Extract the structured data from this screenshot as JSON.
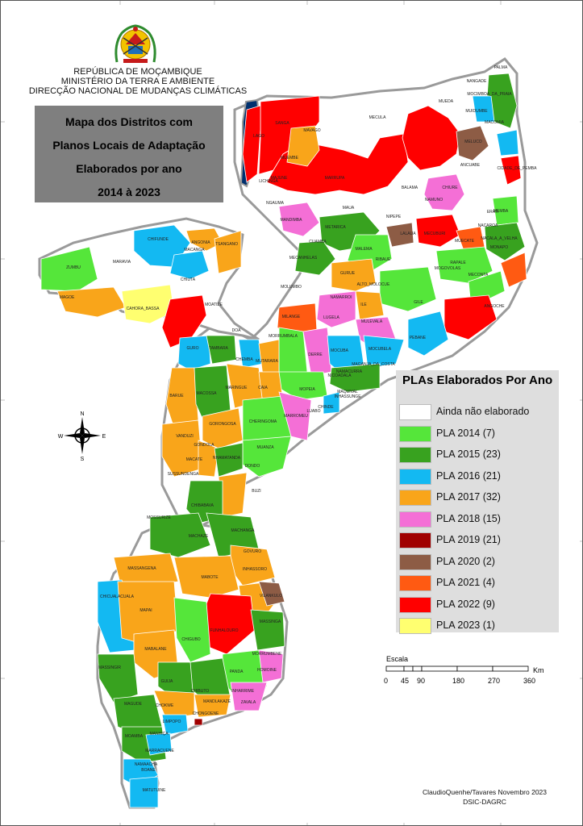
{
  "header": {
    "line1": "REPÚBLICA DE MOÇAMBIQUE",
    "line2": "MINISTÉRIO DA TERRA E AMBIENTE",
    "line3": "DIRECÇÃO NACIONAL DE MUDANÇAS CLIMÁTICAS"
  },
  "title": {
    "line1": "Mapa dos Distritos com",
    "line2": "Planos Locais de Adaptação",
    "line3": "Elaborados por ano",
    "line4": "2014 à 2023"
  },
  "legend": {
    "title": "PLAs Elaborados Por Ano",
    "items": [
      {
        "label": "Ainda não elaborado",
        "color": "#ffffff"
      },
      {
        "label": "PLA 2014 (7)",
        "color": "#55e63a"
      },
      {
        "label": "PLA 2015 (23)",
        "color": "#38a21f"
      },
      {
        "label": "PLA 2016 (21)",
        "color": "#13b9f2"
      },
      {
        "label": "PLA 2017 (32)",
        "color": "#f9a51a"
      },
      {
        "label": "PLA 2018 (15)",
        "color": "#f46fd6"
      },
      {
        "label": "PLA 2019 (21)",
        "color": "#a00000"
      },
      {
        "label": "PLA 2020 (2)",
        "color": "#8d5c45"
      },
      {
        "label": "PLA 2021 (4)",
        "color": "#ff5a12"
      },
      {
        "label": "PLA 2022 (9)",
        "color": "#ff0000"
      },
      {
        "label": "PLA 2023 (1)",
        "color": "#ffff70"
      }
    ]
  },
  "compass": {
    "n": "N",
    "s": "S",
    "e": "E",
    "w": "W"
  },
  "scale": {
    "title": "Escala",
    "ticks": [
      "0",
      "45",
      "90",
      "180",
      "270",
      "360"
    ],
    "unit": "Km"
  },
  "credit": {
    "line1": "ClaudioQuenhe/Tavares Novembro 2023",
    "line2": "DSIC-DAGRC"
  },
  "districts": [
    "PALMA",
    "NANGADE",
    "MOCIMBOA_DA_PRAIA",
    "MUIDUMBE",
    "MACOMIA",
    "MUEDA",
    "MELUCO",
    "MECULA",
    "ANCUABE",
    "CIDADE_DE_PEMBA",
    "BALAMA",
    "CHIURE",
    "NAMUNO",
    "MAVAGO",
    "SANGA",
    "LAGO",
    "MUEMBE",
    "LICHINGA",
    "MAJUNE",
    "MARRUPA",
    "NGAUMA",
    "MANDIMBA",
    "MAUA",
    "NIPEPE",
    "METARICA",
    "CUAMBA",
    "MECANHELAS",
    "ERATI",
    "MEMBA",
    "LALAUA",
    "MECUBURI",
    "MUECATE",
    "NACAROA",
    "NACALA_A_VELHA",
    "MONAPO",
    "RIBAUE",
    "RAPALE",
    "MECONTA",
    "MOGOVOLAS",
    "ANGOCHE",
    "MALEMA",
    "GURUE",
    "ALTO_MOLOCUE",
    "MOLUMBO",
    "NAMARROI",
    "ILE",
    "LUGELA",
    "MULEVALA",
    "GILE",
    "PEBANE",
    "MILANGE",
    "MORRUMBALA",
    "DERRE",
    "MOCUBA",
    "MOCUBELA",
    "NAMACURRA",
    "MAGANJA_DA_COSTA",
    "NICOADALA",
    "MAQUIVAL",
    "INHASSUNGE",
    "CHINDE",
    "MOPEIA",
    "MARROMEU",
    "LUABO",
    "CHIFUNDE",
    "ANGONIA",
    "MACANGA",
    "TSANGANO",
    "ZUMBU",
    "MARAVIA",
    "CHIUTA",
    "MOATIZE",
    "MAGOE",
    "CAHORA_BASSA",
    "DOA",
    "GURO",
    "TAMBARA",
    "CHEMBA",
    "MUTARARA",
    "BARUE",
    "MACOSSA",
    "MARINGUE",
    "CAIA",
    "GORONGOSA",
    "CHERINGOMA",
    "VANDUZI",
    "GONDOLA",
    "MACATE",
    "SUSSUNDENGA",
    "NHAMATANDA",
    "MUANZA",
    "DONDO",
    "BUZI",
    "CHIBABAVA",
    "MOSSURIZE",
    "MACHAZE",
    "MACHANGA",
    "GOVURO",
    "MASSANGENA",
    "INHASSORO",
    "MABOTE",
    "VILANKULO",
    "CHICUALACUALA",
    "MAPAI",
    "MASSINGA",
    "FUNHALOURO",
    "CHIGUBO",
    "MORRUMBENE",
    "MABALANE",
    "PANDA",
    "HOMOINE",
    "GUIJA",
    "MASSINGIR",
    "CHIBUTO",
    "INHARRIME",
    "ZAVALA",
    "MANDLAKAZE",
    "CHONGOENE",
    "LIMPOPO",
    "CHOKWE",
    "MAGUDE",
    "MOAMBA",
    "MANHIÇA",
    "MARRACUENE",
    "NAMAACHA",
    "BOANE",
    "MATUTUINE"
  ]
}
